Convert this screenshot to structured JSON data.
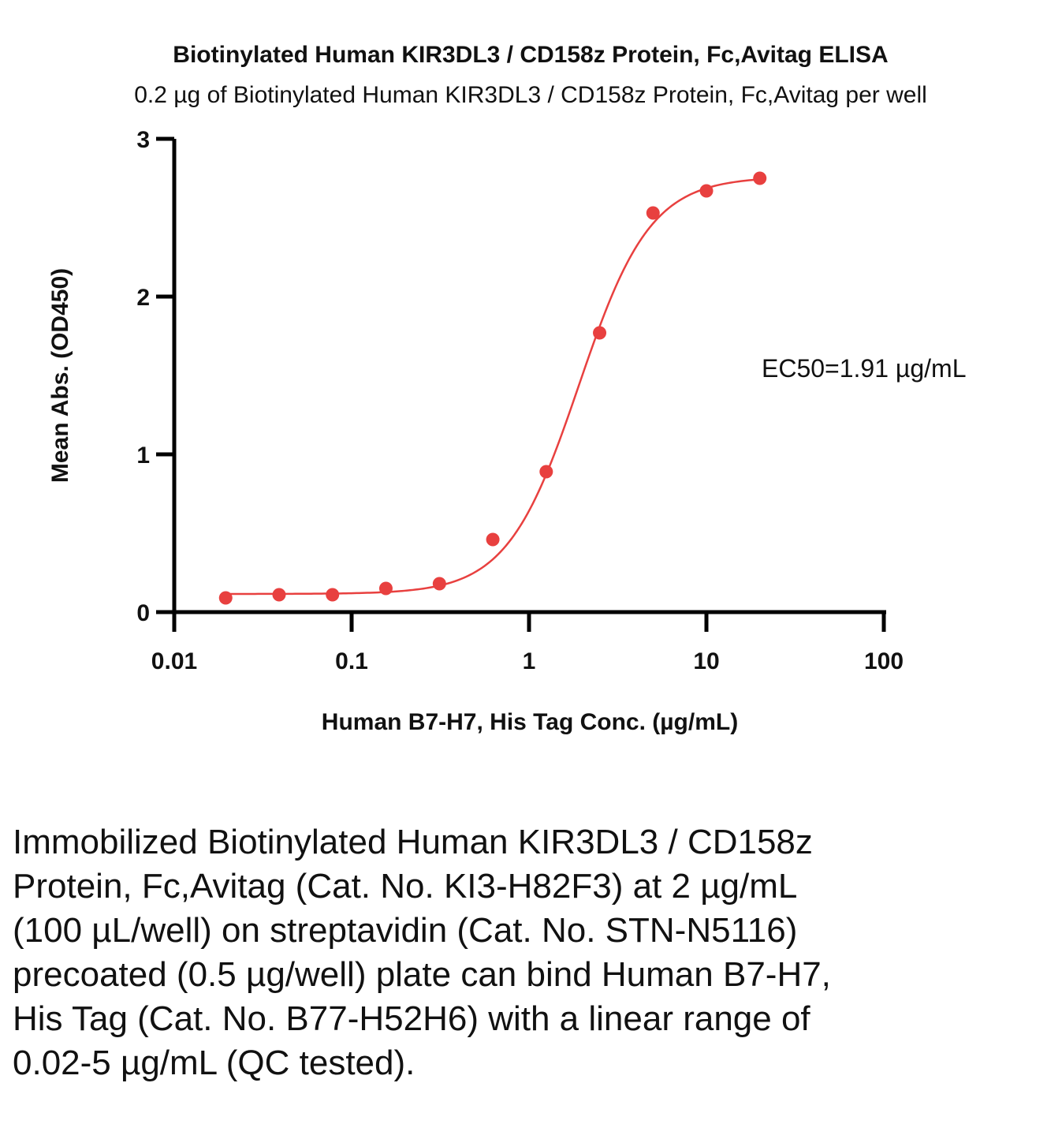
{
  "chart_data": {
    "type": "scatter",
    "title": "Biotinylated Human KIR3DL3 / CD158z Protein, Fc,Avitag ELISA",
    "subtitle": "0.2 µg of Biotinylated Human KIR3DL3 / CD158z Protein, Fc,Avitag per well",
    "xlabel": "Human B7-H7, His Tag Conc. (µg/mL)",
    "ylabel": "Mean Abs. (OD450)",
    "x_scale": "log",
    "xlim": [
      0.01,
      100
    ],
    "ylim": [
      0,
      3
    ],
    "x_ticks": [
      "0.01",
      "0.1",
      "1",
      "10",
      "100"
    ],
    "y_ticks": [
      "0",
      "1",
      "2",
      "3"
    ],
    "grid": false,
    "legend": "none",
    "color": "#e8403f",
    "series": [
      {
        "x": [
          0.0195,
          0.039,
          0.078,
          0.156,
          0.3125,
          0.625,
          1.25,
          2.5,
          5,
          10,
          20
        ],
        "y": [
          0.09,
          0.11,
          0.11,
          0.15,
          0.18,
          0.46,
          0.89,
          1.77,
          2.53,
          2.67,
          2.75
        ],
        "fit": "4PL"
      }
    ],
    "fit_params": {
      "bottom": 0.115,
      "top": 2.76,
      "ec50": 1.91,
      "hill": 2.15
    },
    "annotation": "EC50=1.91 µg/mL"
  },
  "caption": "Immobilized Biotinylated Human KIR3DL3 / CD158z Protein, Fc,Avitag (Cat. No. KI3-H82F3) at 2 µg/mL (100 µL/well) on streptavidin (Cat. No. STN-N5116) precoated (0.5 µg/well) plate can bind Human B7-H7, His Tag (Cat. No. B77-H52H6) with a linear range of 0.02-5 µg/mL (QC tested)."
}
